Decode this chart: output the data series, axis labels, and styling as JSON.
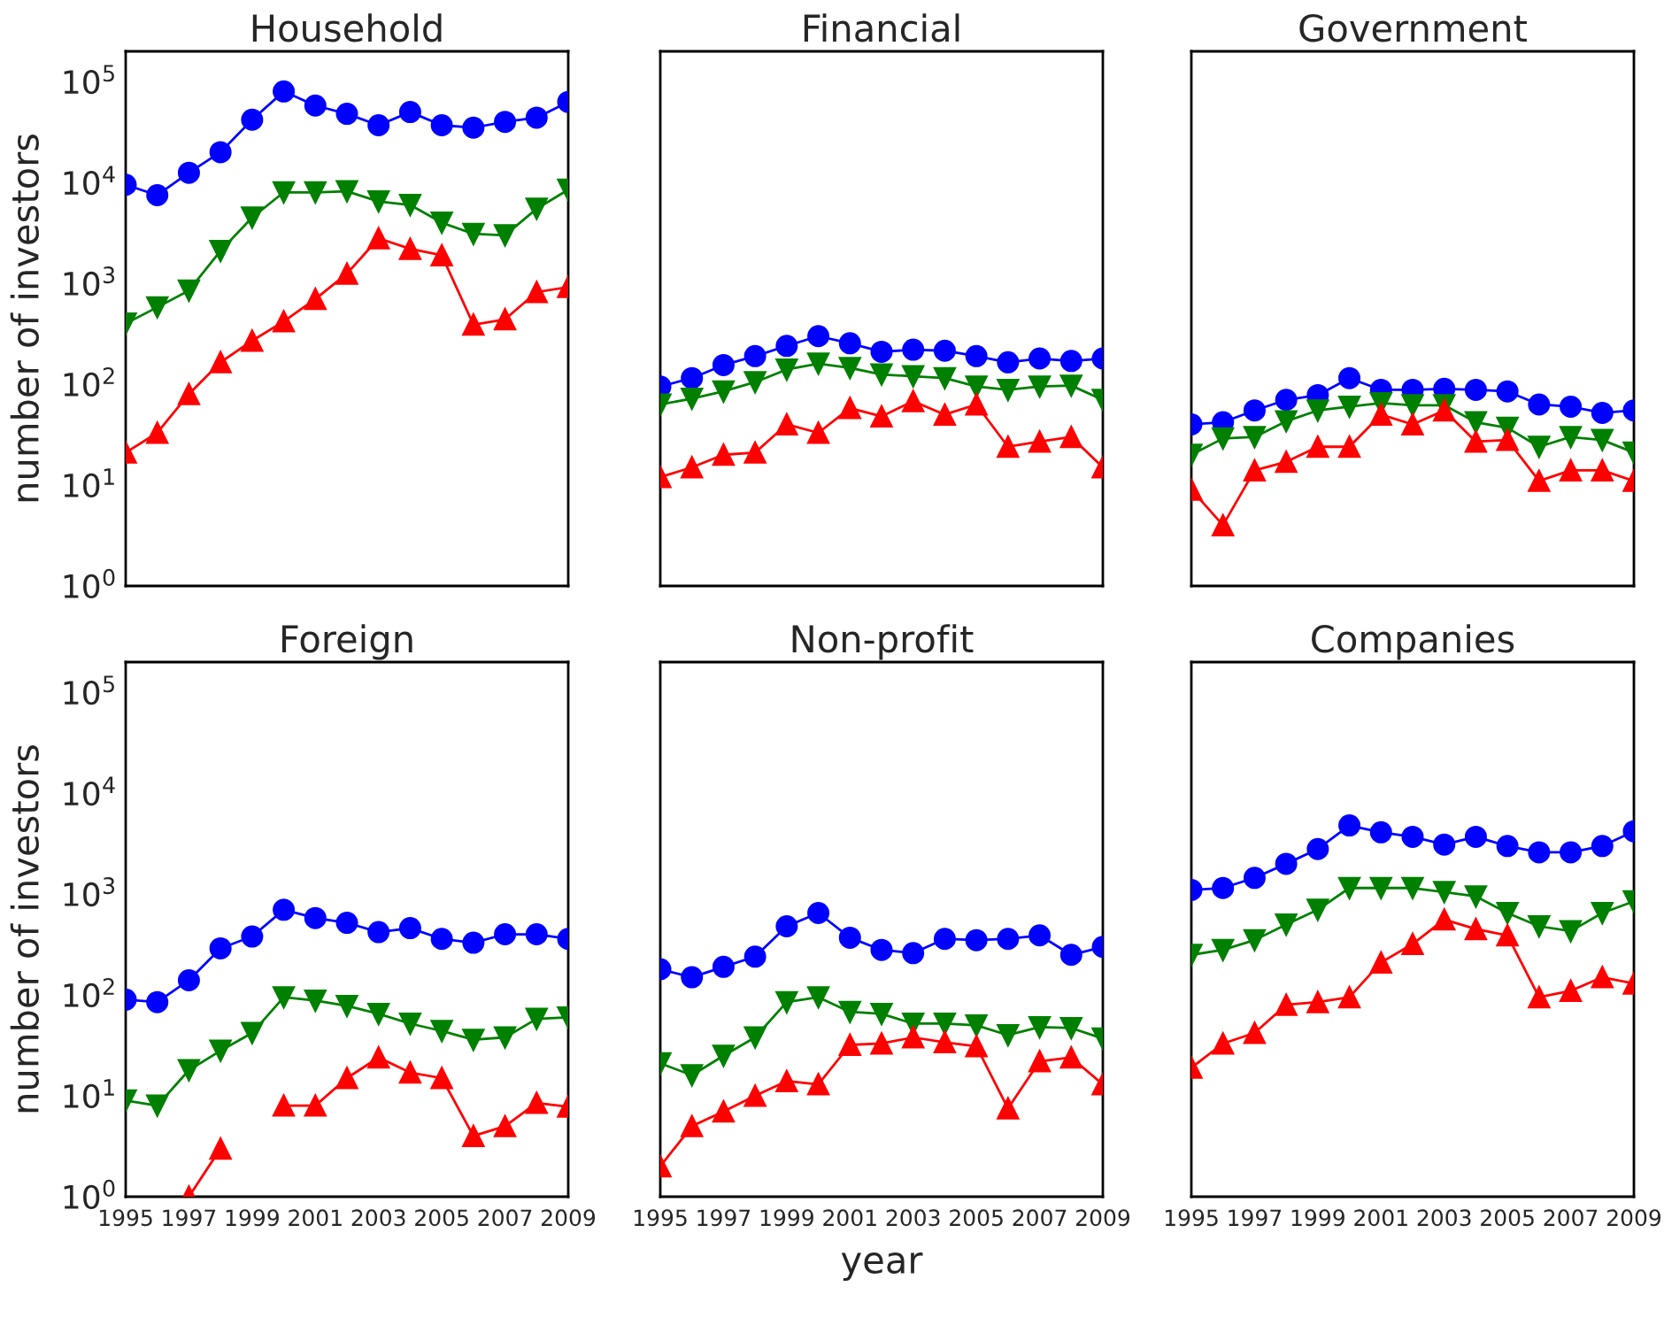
{
  "chart_data": [
    {
      "type": "line",
      "title": "Household",
      "ylabel": "number of investors",
      "log": "y",
      "grid": false,
      "tick_labels": "y",
      "x": [
        1995,
        1996,
        1997,
        1998,
        1999,
        2000,
        2001,
        2002,
        2003,
        2004,
        2005,
        2006,
        2007,
        2008,
        2009
      ],
      "xlim": [
        1995,
        2009
      ],
      "xticks": [
        1995,
        1997,
        1999,
        2001,
        2003,
        2005,
        2007,
        2009
      ],
      "ylim": [
        1,
        200000
      ],
      "yticks": [
        {
          "value": 1,
          "label": "10$^{0}$"
        },
        {
          "value": 10,
          "label": "10$^{1}$"
        },
        {
          "value": 100,
          "label": "10$^{2}$"
        },
        {
          "value": 1000,
          "label": "10$^{3}$"
        },
        {
          "value": 10000,
          "label": "10$^{4}$"
        },
        {
          "value": 100000,
          "label": "10$^{5}$"
        }
      ],
      "series": [
        {
          "color": "#0000ff",
          "marker": "circle",
          "values": [
            9500,
            7500,
            12500,
            20000,
            42000,
            80000,
            58000,
            48000,
            37000,
            50000,
            37000,
            35000,
            40000,
            44000,
            63000
          ]
        },
        {
          "color": "#008000",
          "marker": "triangle_down",
          "values": [
            400,
            580,
            850,
            2100,
            4500,
            8000,
            8000,
            8200,
            6500,
            6000,
            4000,
            3100,
            3000,
            5500,
            8500
          ]
        },
        {
          "color": "#ff0000",
          "marker": "triangle",
          "values": [
            21,
            33,
            80,
            165,
            270,
            420,
            700,
            1250,
            2800,
            2200,
            1900,
            390,
            440,
            820,
            920
          ]
        }
      ]
    },
    {
      "type": "line",
      "title": "Financial",
      "log": "y",
      "grid": false,
      "tick_labels": false,
      "x": [
        1995,
        1996,
        1997,
        1998,
        1999,
        2000,
        2001,
        2002,
        2003,
        2004,
        2005,
        2006,
        2007,
        2008,
        2009
      ],
      "xlim": [
        1995,
        2009
      ],
      "xticks": [
        1995,
        1997,
        1999,
        2001,
        2003,
        2005,
        2007,
        2009
      ],
      "ylim": [
        1,
        200000
      ],
      "yticks": [
        {
          "value": 1,
          "label": null
        },
        {
          "value": 10,
          "label": null
        },
        {
          "value": 100,
          "label": null
        },
        {
          "value": 1000,
          "label": null
        },
        {
          "value": 10000,
          "label": null
        },
        {
          "value": 100000,
          "label": null
        }
      ],
      "series": [
        {
          "color": "#0000ff",
          "marker": "circle",
          "values": [
            95,
            115,
            155,
            190,
            240,
            300,
            255,
            210,
            220,
            215,
            190,
            165,
            180,
            170,
            180
          ]
        },
        {
          "color": "#008000",
          "marker": "triangle_down",
          "values": [
            63,
            72,
            85,
            105,
            140,
            160,
            145,
            125,
            120,
            115,
            95,
            88,
            95,
            97,
            70
          ]
        },
        {
          "color": "#ff0000",
          "marker": "triangle",
          "values": [
            12,
            15,
            20,
            21,
            40,
            33,
            58,
            48,
            68,
            50,
            63,
            24,
            27,
            30,
            15
          ]
        }
      ]
    },
    {
      "type": "line",
      "title": "Government",
      "log": "y",
      "grid": false,
      "tick_labels": false,
      "x": [
        1995,
        1996,
        1997,
        1998,
        1999,
        2000,
        2001,
        2002,
        2003,
        2004,
        2005,
        2006,
        2007,
        2008,
        2009
      ],
      "xlim": [
        1995,
        2009
      ],
      "xticks": [
        1995,
        1997,
        1999,
        2001,
        2003,
        2005,
        2007,
        2009
      ],
      "ylim": [
        1,
        200000
      ],
      "yticks": [
        {
          "value": 1,
          "label": null
        },
        {
          "value": 10,
          "label": null
        },
        {
          "value": 100,
          "label": null
        },
        {
          "value": 1000,
          "label": null
        },
        {
          "value": 10000,
          "label": null
        },
        {
          "value": 100000,
          "label": null
        }
      ],
      "series": [
        {
          "color": "#0000ff",
          "marker": "circle",
          "values": [
            40,
            42,
            55,
            70,
            78,
            115,
            88,
            88,
            90,
            88,
            85,
            63,
            60,
            52,
            55
          ]
        },
        {
          "color": "#008000",
          "marker": "triangle_down",
          "values": [
            20,
            29,
            30,
            43,
            55,
            60,
            65,
            62,
            62,
            42,
            37,
            24,
            30,
            28,
            21
          ]
        },
        {
          "color": "#ff0000",
          "marker": "triangle",
          "values": [
            9,
            4,
            14,
            17,
            24,
            24,
            50,
            40,
            55,
            27,
            28,
            11,
            14,
            14,
            11
          ]
        }
      ]
    },
    {
      "type": "line",
      "title": "Foreign",
      "ylabel": "number of investors",
      "log": "y",
      "grid": false,
      "x": [
        1995,
        1996,
        1997,
        1998,
        1999,
        2000,
        2001,
        2002,
        2003,
        2004,
        2005,
        2006,
        2007,
        2008,
        2009
      ],
      "xlim": [
        1995,
        2009
      ],
      "xticks": [
        1995,
        1997,
        1999,
        2001,
        2003,
        2005,
        2007,
        2009
      ],
      "ylim": [
        1,
        200000
      ],
      "yticks": [
        {
          "value": 1,
          "label": "10$^{0}$"
        },
        {
          "value": 10,
          "label": "10$^{1}$"
        },
        {
          "value": 100,
          "label": "10$^{2}$"
        },
        {
          "value": 1000,
          "label": "10$^{3}$"
        },
        {
          "value": 10000,
          "label": "10$^{4}$"
        },
        {
          "value": 100000,
          "label": "10$^{5}$"
        }
      ],
      "series": [
        {
          "color": "#0000ff",
          "marker": "circle",
          "values": [
            90,
            85,
            140,
            290,
            380,
            700,
            580,
            520,
            420,
            460,
            360,
            330,
            400,
            400,
            360
          ]
        },
        {
          "color": "#008000",
          "marker": "triangle_down",
          "values": [
            9,
            8,
            18,
            28,
            42,
            95,
            88,
            78,
            65,
            52,
            44,
            36,
            38,
            58,
            60
          ]
        },
        {
          "color": "#ff0000",
          "marker": "triangle",
          "values": [
            null,
            null,
            1,
            3,
            null,
            8,
            8,
            15,
            24,
            17,
            15,
            4,
            5,
            8.5,
            7.8
          ]
        }
      ]
    },
    {
      "type": "line",
      "title": "Non-profit",
      "xlabel": "year",
      "log": "y",
      "grid": false,
      "tick_labels": "x",
      "x": [
        1995,
        1996,
        1997,
        1998,
        1999,
        2000,
        2001,
        2002,
        2003,
        2004,
        2005,
        2006,
        2007,
        2008,
        2009
      ],
      "xlim": [
        1995,
        2009
      ],
      "xticks": [
        1995,
        1997,
        1999,
        2001,
        2003,
        2005,
        2007,
        2009
      ],
      "ylim": [
        1,
        200000
      ],
      "yticks": [
        {
          "value": 1,
          "label": null
        },
        {
          "value": 10,
          "label": null
        },
        {
          "value": 100,
          "label": null
        },
        {
          "value": 1000,
          "label": null
        },
        {
          "value": 10000,
          "label": null
        },
        {
          "value": 100000,
          "label": null
        }
      ],
      "series": [
        {
          "color": "#0000ff",
          "marker": "circle",
          "values": [
            180,
            150,
            190,
            240,
            480,
            650,
            370,
            280,
            260,
            360,
            350,
            360,
            390,
            250,
            300
          ]
        },
        {
          "color": "#008000",
          "marker": "triangle_down",
          "values": [
            21,
            16,
            25,
            38,
            85,
            95,
            68,
            65,
            52,
            52,
            50,
            40,
            48,
            47,
            37
          ]
        },
        {
          "color": "#ff0000",
          "marker": "triangle",
          "values": [
            2,
            5,
            7,
            10,
            14,
            13,
            32,
            33,
            38,
            34,
            31,
            7.5,
            22,
            24,
            13
          ]
        }
      ]
    },
    {
      "type": "line",
      "title": "Companies",
      "log": "y",
      "grid": false,
      "tick_labels": "x",
      "x": [
        1995,
        1996,
        1997,
        1998,
        1999,
        2000,
        2001,
        2002,
        2003,
        2004,
        2005,
        2006,
        2007,
        2008,
        2009
      ],
      "xlim": [
        1995,
        2009
      ],
      "xticks": [
        1995,
        1997,
        1999,
        2001,
        2003,
        2005,
        2007,
        2009
      ],
      "ylim": [
        1,
        200000
      ],
      "yticks": [
        {
          "value": 1,
          "label": null
        },
        {
          "value": 10,
          "label": null
        },
        {
          "value": 100,
          "label": null
        },
        {
          "value": 1000,
          "label": null
        },
        {
          "value": 10000,
          "label": null
        },
        {
          "value": 100000,
          "label": null
        }
      ],
      "series": [
        {
          "color": "#0000ff",
          "marker": "circle",
          "values": [
            1100,
            1150,
            1450,
            2000,
            2800,
            4800,
            4100,
            3700,
            3100,
            3700,
            3000,
            2600,
            2600,
            3000,
            4200
          ]
        },
        {
          "color": "#008000",
          "marker": "triangle_down",
          "values": [
            250,
            280,
            350,
            500,
            700,
            1150,
            1150,
            1150,
            1050,
            950,
            650,
            480,
            430,
            650,
            850
          ]
        },
        {
          "color": "#ff0000",
          "marker": "triangle",
          "values": [
            19,
            33,
            42,
            80,
            85,
            95,
            210,
            320,
            560,
            450,
            390,
            95,
            110,
            150,
            130
          ]
        }
      ]
    }
  ]
}
